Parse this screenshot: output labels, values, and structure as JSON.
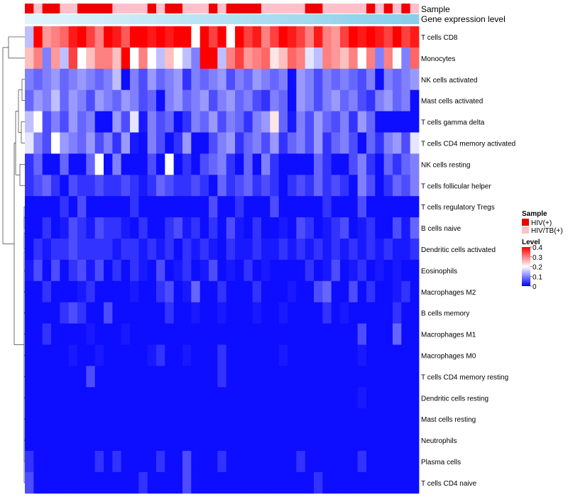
{
  "chart_data": {
    "type": "heatmap",
    "annotation_rows": [
      "Sample",
      "Gene expression level"
    ],
    "sample_groups": [
      "HIV(+)",
      "HIV/TB(+)",
      "HIV(+)",
      "HIV(+)",
      "HIV/TB(+)",
      "HIV/TB(+)",
      "HIV(+)",
      "HIV(+)",
      "HIV(+)",
      "HIV(+)",
      "HIV/TB(+)",
      "HIV/TB(+)",
      "HIV/TB(+)",
      "HIV/TB(+)",
      "HIV(+)",
      "HIV/TB(+)",
      "HIV(+)",
      "HIV(+)",
      "HIV/TB(+)",
      "HIV/TB(+)",
      "HIV/TB(+)",
      "HIV(+)",
      "HIV/TB(+)",
      "HIV(+)",
      "HIV(+)",
      "HIV(+)",
      "HIV(+)",
      "HIV/TB(+)",
      "HIV/TB(+)",
      "HIV/TB(+)",
      "HIV/TB(+)",
      "HIV/TB(+)",
      "HIV(+)",
      "HIV(+)",
      "HIV/TB(+)",
      "HIV/TB(+)",
      "HIV/TB(+)",
      "HIV/TB(+)",
      "HIV/TB(+)",
      "HIV(+)",
      "HIV/TB(+)",
      "HIV(+)",
      "HIV/TB(+)",
      "HIV(+)",
      "HIV/TB(+)"
    ],
    "rows": [
      "T cells CD8",
      "Monocytes",
      "NK cells activated",
      "Mast cells activated",
      "T cells gamma delta",
      "T cells CD4 memory activated",
      "NK cells resting",
      "T cells follicular helper",
      "T cells regulatory  Tregs",
      "B cells naive",
      "Dendritic cells activated",
      "Eosinophils",
      "Macrophages M2",
      "B cells memory",
      "Macrophages M1",
      "Macrophages M0",
      "T cells CD4 memory resting",
      "Dendritic cells resting",
      "Mast cells resting",
      "Neutrophils",
      "Plasma cells",
      "T cells CD4 naive"
    ],
    "values": [
      [
        0.15,
        0.4,
        0.28,
        0.3,
        0.32,
        0.38,
        0.4,
        0.35,
        0.3,
        0.4,
        0.38,
        0.33,
        0.4,
        0.4,
        0.38,
        0.42,
        0.38,
        0.4,
        0.42,
        0.2,
        0.42,
        0.35,
        0.4,
        0.2,
        0.4,
        0.35,
        0.38,
        0.3,
        0.35,
        0.4,
        0.38,
        0.35,
        0.3,
        0.38,
        0.3,
        0.28,
        0.35,
        0.4,
        0.38,
        0.4,
        0.38,
        0.35,
        0.4,
        0.35,
        0.38
      ],
      [
        0.25,
        0.3,
        0.1,
        0.28,
        0.15,
        0.35,
        0.2,
        0.25,
        0.3,
        0.3,
        0.25,
        0.4,
        0.2,
        0.3,
        0.2,
        0.15,
        0.25,
        0.2,
        0.15,
        0.1,
        0.4,
        0.4,
        0.15,
        0.3,
        0.35,
        0.28,
        0.3,
        0.32,
        0.22,
        0.25,
        0.32,
        0.3,
        0.18,
        0.15,
        0.3,
        0.28,
        0.25,
        0.3,
        0.2,
        0.3,
        0.1,
        0.3,
        0.2,
        0.1,
        0.32
      ],
      [
        0.1,
        0.08,
        0.1,
        0.12,
        0.08,
        0.1,
        0.12,
        0.1,
        0.08,
        0.1,
        0.15,
        0.01,
        0.1,
        0.06,
        0.12,
        0.08,
        0.1,
        0.12,
        0.04,
        0.1,
        0.08,
        0.1,
        0.12,
        0.06,
        0.1,
        0.08,
        0.12,
        0.1,
        0.08,
        0.1,
        0.01,
        0.12,
        0.1,
        0.06,
        0.1,
        0.08,
        0.1,
        0.08,
        0.06,
        0.1,
        0.01,
        0.1,
        0.08,
        0.1,
        0.12
      ],
      [
        0.08,
        0.12,
        0.1,
        0.15,
        0.08,
        0.12,
        0.1,
        0.06,
        0.12,
        0.1,
        0.08,
        0.12,
        0.1,
        0.06,
        0.08,
        0.01,
        0.1,
        0.12,
        0.08,
        0.1,
        0.12,
        0.06,
        0.1,
        0.12,
        0.08,
        0.1,
        0.06,
        0.04,
        0.1,
        0.08,
        0.01,
        0.12,
        0.1,
        0.06,
        0.1,
        0.12,
        0.08,
        0.1,
        0.06,
        0.04,
        0.1,
        0.12,
        0.08,
        0.1,
        0.01
      ],
      [
        0.15,
        0.2,
        0.06,
        0.1,
        0.06,
        0.12,
        0.08,
        0.1,
        0.01,
        0.01,
        0.12,
        0.06,
        0.18,
        0.02,
        0.1,
        0.06,
        0.08,
        0.01,
        0.04,
        0.1,
        0.08,
        0.12,
        0.06,
        0.1,
        0.08,
        0.04,
        0.1,
        0.12,
        0.22,
        0.08,
        0.02,
        0.1,
        0.06,
        0.12,
        0.08,
        0.06,
        0.1,
        0.04,
        0.12,
        0.08,
        0.01,
        0.01,
        0.01,
        0.01,
        0.01
      ],
      [
        0.18,
        0.1,
        0.06,
        0.2,
        0.12,
        0.1,
        0.08,
        0.12,
        0.06,
        0.1,
        0.04,
        0.12,
        0.02,
        0.01,
        0.1,
        0.06,
        0.01,
        0.04,
        0.12,
        0.01,
        0.01,
        0.06,
        0.1,
        0.12,
        0.04,
        0.08,
        0.1,
        0.06,
        0.12,
        0.04,
        0.08,
        0.1,
        0.06,
        0.12,
        0.04,
        0.08,
        0.1,
        0.06,
        0.01,
        0.08,
        0.04,
        0.1,
        0.12,
        0.06,
        0.18
      ],
      [
        0.04,
        0.08,
        0.01,
        0.01,
        0.08,
        0.01,
        0.01,
        0.08,
        0.2,
        0.01,
        0.1,
        0.01,
        0.01,
        0.01,
        0.06,
        0.01,
        0.2,
        0.01,
        0.04,
        0.01,
        0.06,
        0.08,
        0.1,
        0.04,
        0.01,
        0.08,
        0.01,
        0.1,
        0.04,
        0.01,
        0.01,
        0.01,
        0.01,
        0.08,
        0.04,
        0.01,
        0.01,
        0.06,
        0.1,
        0.04,
        0.01,
        0.08,
        0.04,
        0.08,
        0.1
      ],
      [
        0.04,
        0.06,
        0.08,
        0.04,
        0.01,
        0.06,
        0.04,
        0.04,
        0.06,
        0.04,
        0.04,
        0.06,
        0.04,
        0.02,
        0.04,
        0.08,
        0.06,
        0.04,
        0.04,
        0.06,
        0.04,
        0.01,
        0.08,
        0.04,
        0.06,
        0.08,
        0.04,
        0.06,
        0.04,
        0.01,
        0.04,
        0.06,
        0.04,
        0.08,
        0.04,
        0.06,
        0.04,
        0.01,
        0.1,
        0.06,
        0.01,
        0.04,
        0.08,
        0.06,
        0.1
      ],
      [
        0.01,
        0.01,
        0.01,
        0.01,
        0.04,
        0.01,
        0.06,
        0.01,
        0.01,
        0.01,
        0.01,
        0.01,
        0.04,
        0.01,
        0.01,
        0.01,
        0.01,
        0.01,
        0.01,
        0.01,
        0.01,
        0.06,
        0.01,
        0.01,
        0.04,
        0.01,
        0.01,
        0.01,
        0.06,
        0.01,
        0.01,
        0.01,
        0.01,
        0.01,
        0.04,
        0.01,
        0.01,
        0.01,
        0.06,
        0.01,
        0.01,
        0.01,
        0.01,
        0.01,
        0.01
      ],
      [
        0.01,
        0.01,
        0.04,
        0.01,
        0.02,
        0.06,
        0.04,
        0.02,
        0.06,
        0.04,
        0.04,
        0.02,
        0.01,
        0.04,
        0.01,
        0.01,
        0.04,
        0.06,
        0.02,
        0.04,
        0.01,
        0.04,
        0.01,
        0.06,
        0.02,
        0.01,
        0.04,
        0.01,
        0.01,
        0.02,
        0.01,
        0.06,
        0.04,
        0.01,
        0.02,
        0.04,
        0.06,
        0.01,
        0.02,
        0.04,
        0.01,
        0.01,
        0.06,
        0.02,
        0.08
      ],
      [
        0.01,
        0.04,
        0.02,
        0.04,
        0.04,
        0.06,
        0.04,
        0.04,
        0.04,
        0.04,
        0.02,
        0.04,
        0.04,
        0.02,
        0.04,
        0.02,
        0.04,
        0.01,
        0.04,
        0.02,
        0.04,
        0.02,
        0.01,
        0.04,
        0.02,
        0.02,
        0.04,
        0.02,
        0.02,
        0.04,
        0.02,
        0.04,
        0.02,
        0.04,
        0.02,
        0.04,
        0.02,
        0.04,
        0.02,
        0.04,
        0.02,
        0.04,
        0.02,
        0.02,
        0.04
      ],
      [
        0.02,
        0.06,
        0.01,
        0.06,
        0.01,
        0.04,
        0.06,
        0.02,
        0.06,
        0.01,
        0.04,
        0.01,
        0.04,
        0.02,
        0.01,
        0.06,
        0.01,
        0.02,
        0.04,
        0.01,
        0.02,
        0.06,
        0.01,
        0.02,
        0.01,
        0.04,
        0.01,
        0.02,
        0.01,
        0.01,
        0.01,
        0.01,
        0.04,
        0.01,
        0.02,
        0.06,
        0.01,
        0.02,
        0.04,
        0.01,
        0.02,
        0.01,
        0.02,
        0.01,
        0.01
      ],
      [
        0.01,
        0.01,
        0.04,
        0.01,
        0.01,
        0.01,
        0.02,
        0.04,
        0.01,
        0.01,
        0.01,
        0.01,
        0.02,
        0.01,
        0.01,
        0.04,
        0.06,
        0.01,
        0.02,
        0.08,
        0.01,
        0.01,
        0.04,
        0.01,
        0.01,
        0.01,
        0.04,
        0.01,
        0.01,
        0.01,
        0.02,
        0.01,
        0.01,
        0.06,
        0.08,
        0.01,
        0.01,
        0.06,
        0.01,
        0.04,
        0.01,
        0.01,
        0.02,
        0.04,
        0.01
      ],
      [
        0.01,
        0.01,
        0.01,
        0.01,
        0.04,
        0.06,
        0.04,
        0.01,
        0.01,
        0.06,
        0.01,
        0.01,
        0.01,
        0.01,
        0.01,
        0.01,
        0.04,
        0.01,
        0.01,
        0.02,
        0.01,
        0.01,
        0.02,
        0.01,
        0.01,
        0.01,
        0.02,
        0.01,
        0.01,
        0.02,
        0.01,
        0.01,
        0.01,
        0.01,
        0.04,
        0.01,
        0.02,
        0.01,
        0.01,
        0.01,
        0.01,
        0.01,
        0.04,
        0.01,
        0.01
      ],
      [
        0.01,
        0.01,
        0.04,
        0.01,
        0.01,
        0.01,
        0.01,
        0.02,
        0.01,
        0.01,
        0.01,
        0.02,
        0.01,
        0.01,
        0.01,
        0.01,
        0.01,
        0.01,
        0.01,
        0.01,
        0.01,
        0.01,
        0.01,
        0.01,
        0.01,
        0.01,
        0.01,
        0.01,
        0.01,
        0.01,
        0.01,
        0.01,
        0.01,
        0.01,
        0.01,
        0.01,
        0.01,
        0.01,
        0.06,
        0.01,
        0.01,
        0.01,
        0.08,
        0.01,
        0.01
      ],
      [
        0.01,
        0.01,
        0.01,
        0.01,
        0.01,
        0.02,
        0.01,
        0.01,
        0.02,
        0.01,
        0.01,
        0.01,
        0.01,
        0.01,
        0.02,
        0.04,
        0.01,
        0.01,
        0.02,
        0.01,
        0.01,
        0.01,
        0.04,
        0.01,
        0.01,
        0.01,
        0.01,
        0.01,
        0.01,
        0.02,
        0.01,
        0.01,
        0.01,
        0.01,
        0.01,
        0.01,
        0.01,
        0.01,
        0.02,
        0.01,
        0.01,
        0.01,
        0.01,
        0.01,
        0.01
      ],
      [
        0.01,
        0.01,
        0.01,
        0.01,
        0.01,
        0.01,
        0.01,
        0.06,
        0.01,
        0.01,
        0.01,
        0.01,
        0.01,
        0.01,
        0.01,
        0.01,
        0.01,
        0.01,
        0.01,
        0.01,
        0.01,
        0.01,
        0.04,
        0.01,
        0.01,
        0.01,
        0.01,
        0.01,
        0.01,
        0.01,
        0.01,
        0.01,
        0.01,
        0.01,
        0.01,
        0.01,
        0.01,
        0.01,
        0.01,
        0.01,
        0.01,
        0.01,
        0.01,
        0.01,
        0.01
      ],
      [
        0.01,
        0.01,
        0.01,
        0.01,
        0.01,
        0.01,
        0.01,
        0.01,
        0.01,
        0.01,
        0.01,
        0.01,
        0.01,
        0.01,
        0.01,
        0.01,
        0.01,
        0.01,
        0.01,
        0.01,
        0.01,
        0.01,
        0.01,
        0.01,
        0.01,
        0.01,
        0.01,
        0.01,
        0.01,
        0.01,
        0.01,
        0.01,
        0.01,
        0.01,
        0.01,
        0.01,
        0.01,
        0.01,
        0.02,
        0.01,
        0.01,
        0.01,
        0.01,
        0.01,
        0.01
      ],
      [
        0.01,
        0.01,
        0.01,
        0.01,
        0.01,
        0.01,
        0.01,
        0.01,
        0.01,
        0.01,
        0.01,
        0.01,
        0.01,
        0.01,
        0.01,
        0.01,
        0.01,
        0.01,
        0.01,
        0.01,
        0.01,
        0.01,
        0.01,
        0.01,
        0.01,
        0.01,
        0.01,
        0.01,
        0.01,
        0.01,
        0.01,
        0.01,
        0.01,
        0.01,
        0.01,
        0.01,
        0.01,
        0.01,
        0.01,
        0.01,
        0.01,
        0.01,
        0.01,
        0.01,
        0.01
      ],
      [
        0.01,
        0.01,
        0.01,
        0.01,
        0.01,
        0.01,
        0.01,
        0.01,
        0.01,
        0.01,
        0.01,
        0.01,
        0.01,
        0.01,
        0.01,
        0.01,
        0.01,
        0.01,
        0.01,
        0.01,
        0.01,
        0.01,
        0.01,
        0.01,
        0.01,
        0.01,
        0.01,
        0.01,
        0.01,
        0.01,
        0.01,
        0.01,
        0.01,
        0.01,
        0.01,
        0.01,
        0.01,
        0.01,
        0.01,
        0.01,
        0.01,
        0.01,
        0.01,
        0.01,
        0.01
      ],
      [
        0.04,
        0.01,
        0.01,
        0.01,
        0.01,
        0.01,
        0.01,
        0.01,
        0.04,
        0.01,
        0.04,
        0.01,
        0.01,
        0.01,
        0.01,
        0.04,
        0.01,
        0.01,
        0.06,
        0.01,
        0.01,
        0.01,
        0.04,
        0.01,
        0.01,
        0.01,
        0.01,
        0.01,
        0.01,
        0.01,
        0.01,
        0.04,
        0.01,
        0.01,
        0.01,
        0.01,
        0.01,
        0.01,
        0.04,
        0.01,
        0.01,
        0.01,
        0.01,
        0.01,
        0.01
      ],
      [
        0.06,
        0.01,
        0.01,
        0.01,
        0.01,
        0.01,
        0.01,
        0.01,
        0.01,
        0.01,
        0.01,
        0.01,
        0.01,
        0.04,
        0.01,
        0.01,
        0.01,
        0.01,
        0.06,
        0.01,
        0.01,
        0.01,
        0.01,
        0.01,
        0.01,
        0.01,
        0.01,
        0.01,
        0.01,
        0.01,
        0.01,
        0.01,
        0.01,
        0.04,
        0.01,
        0.01,
        0.01,
        0.01,
        0.01,
        0.01,
        0.01,
        0.01,
        0.01,
        0.01,
        0.01
      ]
    ],
    "color_scale": {
      "min": 0,
      "mid": 0.2,
      "max": 0.4,
      "low": "#0000ff",
      "midColor": "#ffffff",
      "high": "#ff0000"
    },
    "legend": {
      "position": "right",
      "sample_title": "Sample",
      "sample_items": [
        {
          "label": "HIV(+)",
          "color": "#ee0000"
        },
        {
          "label": "HIV/TB(+)",
          "color": "#ffc0cb"
        }
      ],
      "level_title": "Level",
      "level_ticks": [
        "0.4",
        "0.3",
        "0.2",
        "0.1",
        "0"
      ],
      "level_tick_values": [
        0.4,
        0.3,
        0.2,
        0.1,
        0
      ]
    },
    "gene_expression_color": "#87ceeb"
  }
}
